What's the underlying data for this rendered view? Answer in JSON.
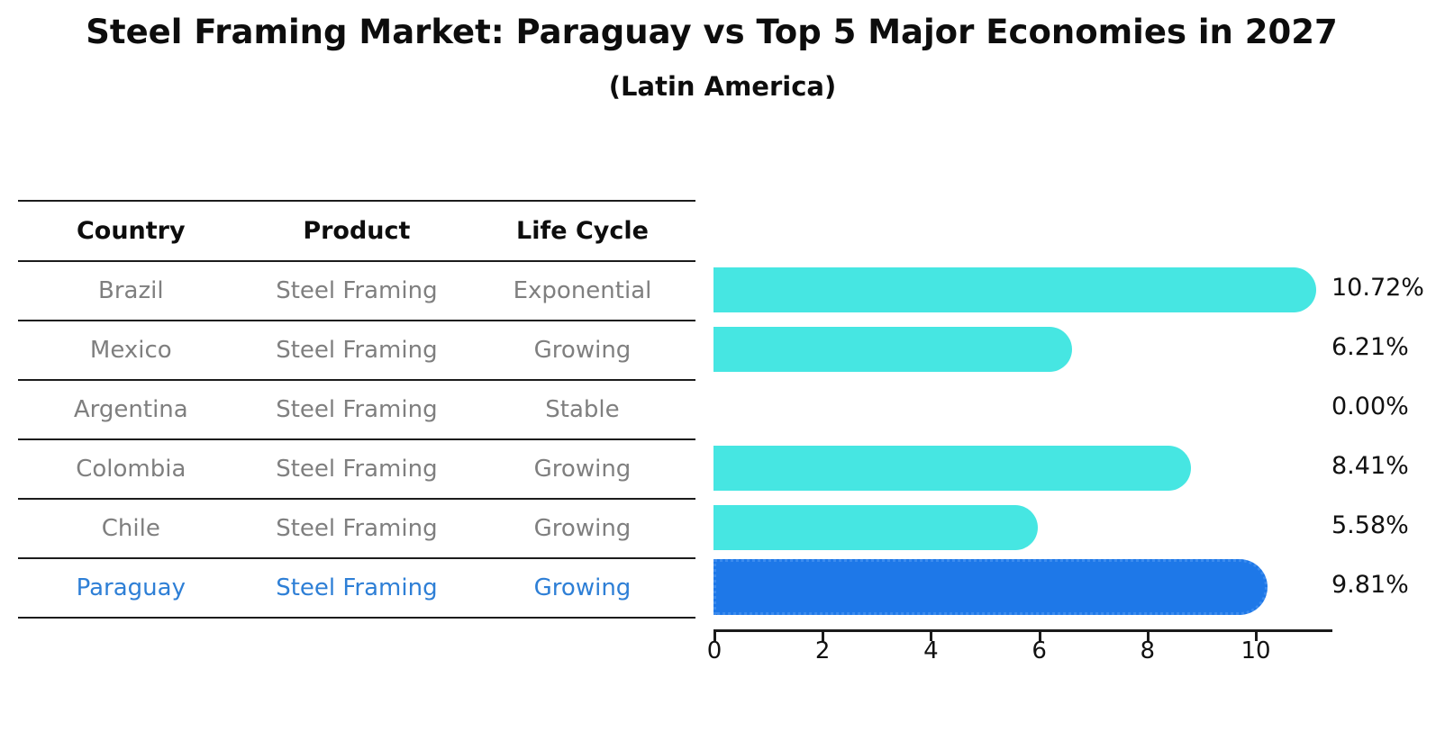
{
  "title": "Steel Framing Market: Paraguay vs Top 5 Major Economies in 2027",
  "subtitle": "(Latin America)",
  "table": {
    "headers": [
      "Country",
      "Product",
      "Life Cycle"
    ],
    "rows": [
      {
        "country": "Brazil",
        "product": "Steel Framing",
        "life_cycle": "Exponential",
        "highlight": false
      },
      {
        "country": "Mexico",
        "product": "Steel Framing",
        "life_cycle": "Growing",
        "highlight": false
      },
      {
        "country": "Argentina",
        "product": "Steel Framing",
        "life_cycle": "Stable",
        "highlight": false
      },
      {
        "country": "Colombia",
        "product": "Steel Framing",
        "life_cycle": "Growing",
        "highlight": false
      },
      {
        "country": "Chile",
        "product": "Steel Framing",
        "life_cycle": "Growing",
        "highlight": false
      },
      {
        "country": "Paraguay",
        "product": "Steel Framing",
        "life_cycle": "Growing",
        "highlight": true
      }
    ]
  },
  "chart_data": {
    "type": "bar",
    "orientation": "horizontal",
    "title": "Steel Framing Market: Paraguay vs Top 5 Major Economies in 2027",
    "subtitle": "(Latin America)",
    "categories": [
      "Brazil",
      "Mexico",
      "Argentina",
      "Colombia",
      "Chile",
      "Paraguay"
    ],
    "values": [
      10.72,
      6.21,
      0.0,
      8.41,
      5.58,
      9.81
    ],
    "value_labels": [
      "10.72%",
      "6.21%",
      "0.00%",
      "8.41%",
      "5.58%",
      "9.81%"
    ],
    "x_ticks": [
      0,
      2,
      4,
      6,
      8,
      10
    ],
    "xlim": [
      0,
      11.4
    ],
    "grid": false,
    "legend": false,
    "highlight_index": 5,
    "bar_color": "#46e6e2",
    "highlight_bar_color": "#1e78e8",
    "highlight_text_color": "#2e7fd6",
    "row_text_color": "#7f7f7f",
    "axis_color": "#1a1a1a"
  }
}
